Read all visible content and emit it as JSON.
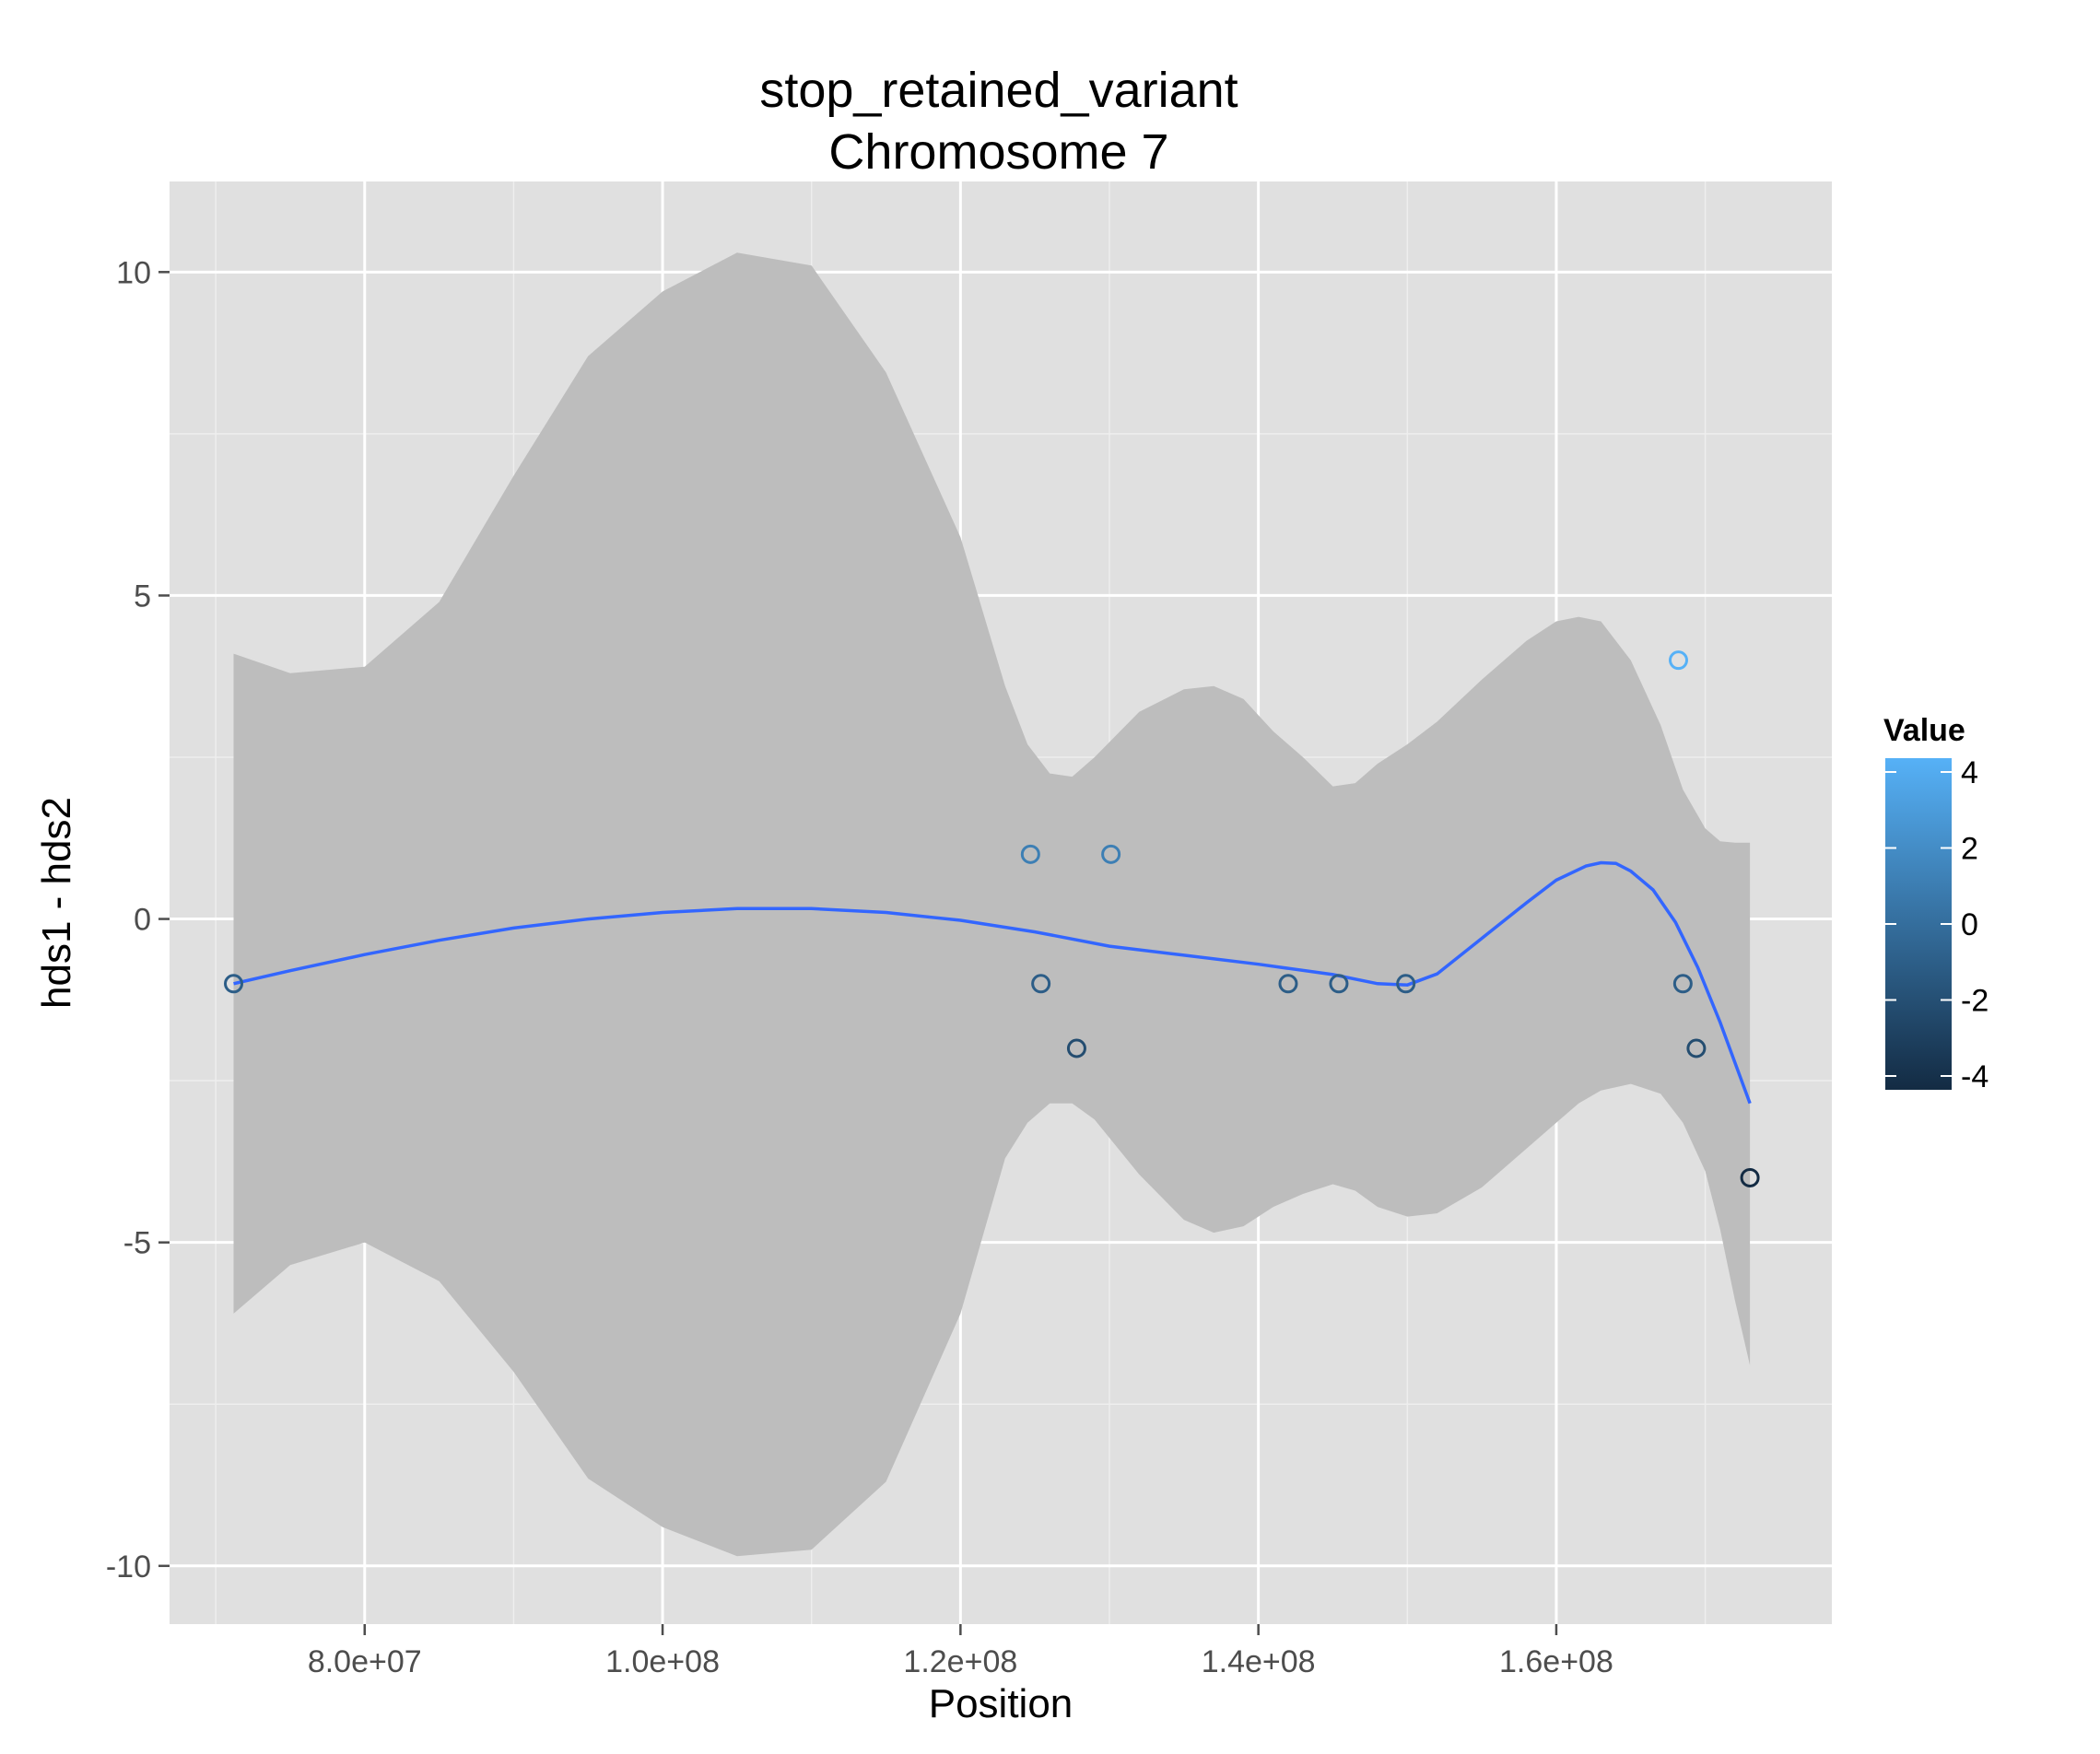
{
  "chart_data": {
    "type": "scatter",
    "title_line1": "stop_retained_variant",
    "title_line2": "Chromosome 7",
    "xlabel": "Position",
    "ylabel": "hds1 - hds2",
    "xlim": [
      66900000,
      178500000
    ],
    "ylim": [
      -10.9,
      11.4
    ],
    "x_major_ticks": [
      80000000,
      100000000,
      120000000,
      140000000,
      160000000
    ],
    "x_tick_labels": [
      "8.0e+07",
      "1.0e+08",
      "1.2e+08",
      "1.4e+08",
      "1.6e+08"
    ],
    "y_major_ticks": [
      -10,
      -5,
      0,
      5,
      10
    ],
    "y_tick_labels": [
      "-10",
      "-5",
      "0",
      "5",
      "10"
    ],
    "grid": true,
    "points": [
      {
        "x": 71200000,
        "y": -1
      },
      {
        "x": 124700000,
        "y": 1
      },
      {
        "x": 125400000,
        "y": -1
      },
      {
        "x": 127800000,
        "y": -2
      },
      {
        "x": 130100000,
        "y": 1
      },
      {
        "x": 142000000,
        "y": -1
      },
      {
        "x": 145400000,
        "y": -1
      },
      {
        "x": 149900000,
        "y": -1
      },
      {
        "x": 168200000,
        "y": 4
      },
      {
        "x": 168500000,
        "y": -1
      },
      {
        "x": 169400000,
        "y": -2
      },
      {
        "x": 173000000,
        "y": -4
      }
    ],
    "smooth_line": [
      [
        71200000,
        -1.0
      ],
      [
        75000000,
        -0.8
      ],
      [
        80000000,
        -0.55
      ],
      [
        85000000,
        -0.33
      ],
      [
        90000000,
        -0.14
      ],
      [
        95000000,
        0.0
      ],
      [
        100000000,
        0.1
      ],
      [
        105000000,
        0.16
      ],
      [
        110000000,
        0.16
      ],
      [
        115000000,
        0.1
      ],
      [
        120000000,
        -0.02
      ],
      [
        125000000,
        -0.2
      ],
      [
        130000000,
        -0.42
      ],
      [
        135000000,
        -0.56
      ],
      [
        140000000,
        -0.7
      ],
      [
        145000000,
        -0.86
      ],
      [
        148000000,
        -1.0
      ],
      [
        150000000,
        -1.02
      ],
      [
        152000000,
        -0.85
      ],
      [
        155000000,
        -0.3
      ],
      [
        158000000,
        0.25
      ],
      [
        160000000,
        0.6
      ],
      [
        162000000,
        0.82
      ],
      [
        163000000,
        0.87
      ],
      [
        164000000,
        0.86
      ],
      [
        165000000,
        0.74
      ],
      [
        166500000,
        0.45
      ],
      [
        168000000,
        -0.05
      ],
      [
        169500000,
        -0.75
      ],
      [
        171000000,
        -1.6
      ],
      [
        173000000,
        -2.85
      ]
    ],
    "ci_band": [
      [
        71200000,
        4.1,
        -6.1
      ],
      [
        75000000,
        3.8,
        -5.35
      ],
      [
        80000000,
        3.9,
        -5.0
      ],
      [
        85000000,
        4.9,
        -5.6
      ],
      [
        90000000,
        6.85,
        -7.0
      ],
      [
        95000000,
        8.7,
        -8.65
      ],
      [
        100000000,
        9.7,
        -9.4
      ],
      [
        105000000,
        10.3,
        -9.85
      ],
      [
        110000000,
        10.1,
        -9.75
      ],
      [
        115000000,
        8.45,
        -8.7
      ],
      [
        120000000,
        5.9,
        -6.1
      ],
      [
        123000000,
        3.6,
        -3.7
      ],
      [
        124500000,
        2.7,
        -3.15
      ],
      [
        126000000,
        2.25,
        -2.85
      ],
      [
        127500000,
        2.2,
        -2.85
      ],
      [
        129000000,
        2.5,
        -3.1
      ],
      [
        132000000,
        3.2,
        -3.95
      ],
      [
        135000000,
        3.55,
        -4.65
      ],
      [
        137000000,
        3.6,
        -4.85
      ],
      [
        139000000,
        3.4,
        -4.75
      ],
      [
        141000000,
        2.9,
        -4.45
      ],
      [
        143000000,
        2.5,
        -4.25
      ],
      [
        145000000,
        2.05,
        -4.1
      ],
      [
        146500000,
        2.1,
        -4.2
      ],
      [
        148000000,
        2.4,
        -4.45
      ],
      [
        150000000,
        2.7,
        -4.6
      ],
      [
        152000000,
        3.05,
        -4.55
      ],
      [
        155000000,
        3.7,
        -4.15
      ],
      [
        158000000,
        4.3,
        -3.55
      ],
      [
        160000000,
        4.6,
        -3.15
      ],
      [
        161500000,
        4.67,
        -2.85
      ],
      [
        163000000,
        4.6,
        -2.65
      ],
      [
        165000000,
        4.0,
        -2.55
      ],
      [
        167000000,
        3.0,
        -2.7
      ],
      [
        168500000,
        2.0,
        -3.15
      ],
      [
        170000000,
        1.4,
        -3.9
      ],
      [
        171000000,
        1.2,
        -4.8
      ],
      [
        172000000,
        1.18,
        -5.9
      ],
      [
        173000000,
        1.18,
        -6.9
      ]
    ],
    "legend": {
      "title": "Value",
      "position": "right",
      "scale": [
        -4,
        4
      ],
      "ticks": [
        4,
        2,
        0,
        -2,
        -4
      ],
      "tick_labels": [
        "4",
        "2",
        "0",
        "-2",
        "-4"
      ],
      "color_low": "#132b43",
      "color_high": "#56b1f7"
    },
    "colors": {
      "panel_background": "#e0e0e0",
      "grid_major": "#ffffff",
      "grid_minor": "#eeeeee",
      "ribbon": "#bdbdbd",
      "smooth_line": "#3366ff",
      "point_low": "#132b43",
      "point_high": "#56b1f7"
    }
  }
}
